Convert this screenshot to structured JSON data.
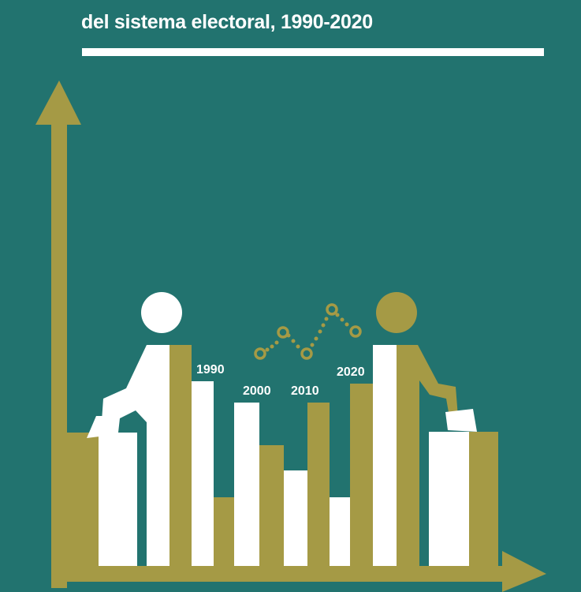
{
  "cover": {
    "subtitle": "del sistema electoral, 1990-2020",
    "years": [
      "1990",
      "2000",
      "2010",
      "2020"
    ],
    "colors": {
      "background": "#22736F",
      "gold": "#A59A45",
      "white": "#FFFFFF"
    }
  }
}
